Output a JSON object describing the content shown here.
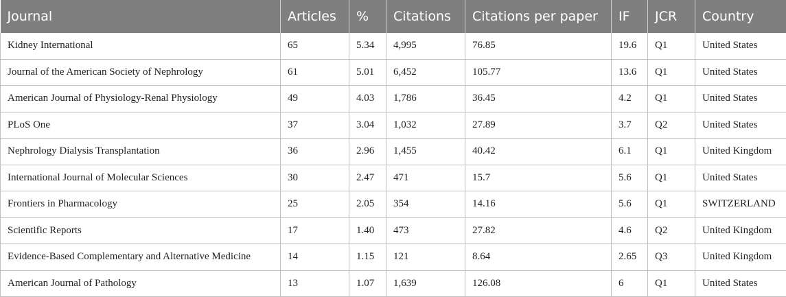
{
  "table": {
    "headers": [
      "Journal",
      "Articles",
      "%",
      "Citations",
      "Citations per paper",
      "IF",
      "JCR",
      "Country"
    ],
    "rows": [
      [
        "Kidney International",
        "65",
        "5.34",
        "4,995",
        "76.85",
        "19.6",
        "Q1",
        "United States"
      ],
      [
        "Journal of the American Society of Nephrology",
        "61",
        "5.01",
        "6,452",
        "105.77",
        "13.6",
        "Q1",
        "United States"
      ],
      [
        "American Journal of Physiology-Renal Physiology",
        "49",
        "4.03",
        "1,786",
        "36.45",
        "4.2",
        "Q1",
        "United States"
      ],
      [
        "PLoS One",
        "37",
        "3.04",
        "1,032",
        "27.89",
        "3.7",
        "Q2",
        "United States"
      ],
      [
        "Nephrology Dialysis Transplantation",
        "36",
        "2.96",
        "1,455",
        "40.42",
        "6.1",
        "Q1",
        "United Kingdom"
      ],
      [
        "International Journal of Molecular Sciences",
        "30",
        "2.47",
        "471",
        "15.7",
        "5.6",
        "Q1",
        "United States"
      ],
      [
        "Frontiers in Pharmacology",
        "25",
        "2.05",
        "354",
        "14.16",
        "5.6",
        "Q1",
        "SWITZERLAND"
      ],
      [
        "Scientific Reports",
        "17",
        "1.40",
        "473",
        "27.82",
        "4.6",
        "Q2",
        "United Kingdom"
      ],
      [
        "Evidence-Based Complementary and Alternative Medicine",
        "14",
        "1.15",
        "121",
        "8.64",
        "2.65",
        "Q3",
        "United Kingdom"
      ],
      [
        "American Journal of Pathology",
        "13",
        "1.07",
        "1,639",
        "126.08",
        "6",
        "Q1",
        "United States"
      ]
    ]
  }
}
